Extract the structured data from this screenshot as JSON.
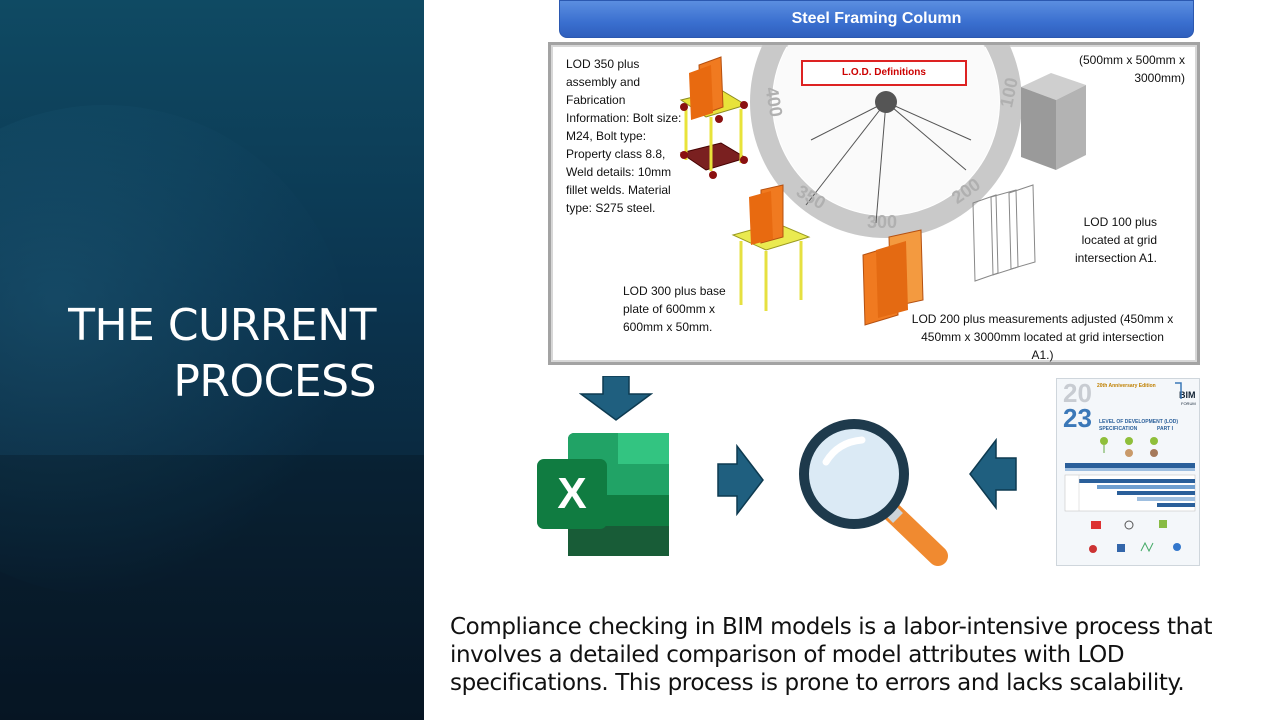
{
  "slide": {
    "title_line1": "THE CURRENT",
    "title_line2": "PROCESS"
  },
  "diagram": {
    "header": "Steel Framing Column",
    "lod_definitions_label": "L.O.D. Definitions",
    "gauge_labels": [
      "400",
      "350",
      "300",
      "200",
      "100"
    ],
    "lod350_text": "LOD 350 plus assembly and Fabrication Information: Bolt size: M24, Bolt type: Property class 8.8, Weld details: 10mm fillet welds. Material type: S275 steel.",
    "dimensions_text": "(500mm x 500mm x 3000mm)",
    "lod100_text": "LOD 100 plus located at grid intersection A1.",
    "lod300_text": "LOD 300 plus base plate of 600mm x 600mm x 50mm.",
    "lod200_text": "LOD 200 plus measurements adjusted (450mm x 450mm x 3000mm located at grid intersection A1.)"
  },
  "flow": {
    "excel_letter": "X",
    "spec_doc": {
      "edition_text": "20th Anniversary Edition",
      "year_top": "20",
      "year_bottom": "23",
      "brand": "BIM",
      "brand_sub": "FORUM",
      "title_line1": "LEVEL OF DEVELOPMENT (LOD)",
      "title_line2": "SPECIFICATION",
      "part": "PART I"
    }
  },
  "caption": "Compliance checking in BIM models is a labor-intensive process that involves a detailed comparison of model attributes with LOD specifications. This process is prone to errors and lacks scalability.",
  "colors": {
    "panel_dark": "#0b3550",
    "arrow_blue": "#1f5f7f",
    "excel_green": "#107c41",
    "header_blue": "#3a6fcf",
    "magnifier_orange": "#f08a30"
  }
}
